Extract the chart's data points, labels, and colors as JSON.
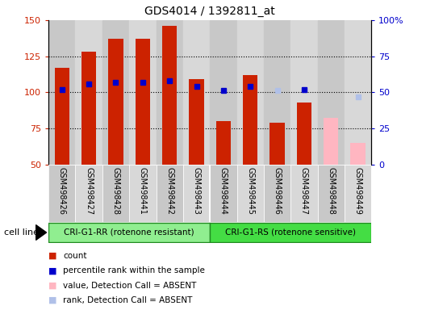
{
  "title": "GDS4014 / 1392811_at",
  "samples": [
    "GSM498426",
    "GSM498427",
    "GSM498428",
    "GSM498441",
    "GSM498442",
    "GSM498443",
    "GSM498444",
    "GSM498445",
    "GSM498446",
    "GSM498447",
    "GSM498448",
    "GSM498449"
  ],
  "count_values": [
    117,
    128,
    137,
    137,
    146,
    109,
    80,
    112,
    79,
    93,
    null,
    null
  ],
  "count_absent_values": [
    null,
    null,
    null,
    null,
    null,
    null,
    null,
    null,
    null,
    null,
    82,
    65
  ],
  "rank_values": [
    52,
    56,
    57,
    57,
    58,
    54,
    51,
    54,
    null,
    52,
    null,
    null
  ],
  "rank_absent_values": [
    null,
    null,
    null,
    null,
    null,
    null,
    null,
    null,
    null,
    null,
    null,
    47
  ],
  "rank_dot_absent": [
    null,
    null,
    null,
    null,
    null,
    null,
    null,
    null,
    51,
    null,
    null,
    null
  ],
  "group1_count": 6,
  "group2_count": 6,
  "group1_label": "CRI-G1-RR (rotenone resistant)",
  "group2_label": "CRI-G1-RS (rotenone sensitive)",
  "cell_line_label": "cell line",
  "ylim_left": [
    50,
    150
  ],
  "ylim_right": [
    0,
    100
  ],
  "yticks_left": [
    50,
    75,
    100,
    125,
    150
  ],
  "yticks_right": [
    0,
    25,
    50,
    75,
    100
  ],
  "color_count": "#cc2200",
  "color_rank": "#0000cc",
  "color_count_absent": "#ffb6c1",
  "color_rank_absent": "#b0c0e8",
  "bar_width": 0.55,
  "legend_items": [
    "count",
    "percentile rank within the sample",
    "value, Detection Call = ABSENT",
    "rank, Detection Call = ABSENT"
  ],
  "legend_colors": [
    "#cc2200",
    "#0000cc",
    "#ffb6c1",
    "#b0c0e8"
  ]
}
